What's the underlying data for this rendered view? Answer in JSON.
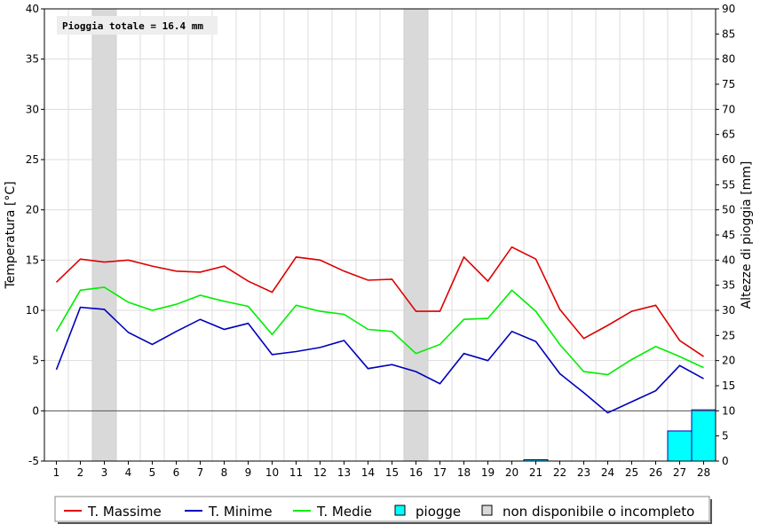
{
  "chart_data": {
    "type": "line",
    "x": [
      1,
      2,
      3,
      4,
      5,
      6,
      7,
      8,
      9,
      10,
      11,
      12,
      13,
      14,
      15,
      16,
      17,
      18,
      19,
      20,
      21,
      22,
      23,
      24,
      25,
      26,
      27,
      28
    ],
    "series": [
      {
        "name": "T. Massime",
        "color": "#dd0000",
        "values": [
          12.8,
          15.1,
          14.8,
          15.0,
          14.4,
          13.9,
          13.8,
          14.4,
          12.9,
          11.8,
          15.3,
          15.0,
          13.9,
          13.0,
          13.1,
          9.9,
          9.9,
          15.3,
          12.9,
          16.3,
          15.1,
          10.1,
          7.2,
          8.5,
          9.9,
          10.5,
          7.0,
          5.4
        ]
      },
      {
        "name": "T. Minime",
        "color": "#0000bb",
        "values": [
          4.1,
          10.3,
          10.1,
          7.8,
          6.6,
          7.9,
          9.1,
          8.1,
          8.7,
          5.6,
          5.9,
          6.3,
          7.0,
          4.2,
          4.6,
          3.9,
          2.7,
          5.7,
          5.0,
          7.9,
          6.9,
          3.7,
          1.8,
          -0.2,
          0.9,
          2.0,
          4.5,
          3.2
        ]
      },
      {
        "name": "T. Medie",
        "color": "#00ee00",
        "values": [
          7.9,
          12.0,
          12.3,
          10.8,
          10.0,
          10.6,
          11.5,
          10.9,
          10.4,
          7.6,
          10.5,
          9.9,
          9.6,
          8.1,
          7.9,
          5.7,
          6.6,
          9.1,
          9.2,
          12.0,
          9.9,
          6.6,
          3.9,
          3.6,
          5.1,
          6.4,
          5.4,
          4.3
        ]
      }
    ],
    "rain": {
      "name": "piogge",
      "color": "#00ffff",
      "values": [
        0,
        0,
        0,
        0,
        0,
        0,
        0,
        0,
        0,
        0,
        0,
        0,
        0,
        0,
        0,
        0,
        0,
        0,
        0,
        0,
        0.2,
        0,
        0,
        0,
        0,
        0,
        6.0,
        10.2
      ]
    },
    "unavailable_days": [
      3,
      16
    ],
    "unavailable_color": "#d9d9d9",
    "annotation": "Pioggia totale = 16.4 mm",
    "ylabel": "Temperatura [°C]",
    "ylabel_right": "Altezze di pioggia [mm]",
    "ylim": [
      -5,
      40
    ],
    "ylim_right": [
      0,
      90
    ],
    "yticks": [
      -5,
      0,
      5,
      10,
      15,
      20,
      25,
      30,
      35,
      40
    ],
    "yticks_right": [
      0,
      5,
      10,
      15,
      20,
      25,
      30,
      35,
      40,
      45,
      50,
      55,
      60,
      65,
      70,
      75,
      80,
      85,
      90
    ],
    "legend": [
      {
        "label": "T. Massime",
        "kind": "line",
        "color": "#dd0000"
      },
      {
        "label": "T. Minime",
        "kind": "line",
        "color": "#0000bb"
      },
      {
        "label": "T. Medie",
        "kind": "line",
        "color": "#00ee00"
      },
      {
        "label": "piogge",
        "kind": "box",
        "color": "#00ffff"
      },
      {
        "label": "non disponibile o incompleto",
        "kind": "box",
        "color": "#d9d9d9"
      }
    ],
    "legend_position": "bottom",
    "grid": true
  }
}
